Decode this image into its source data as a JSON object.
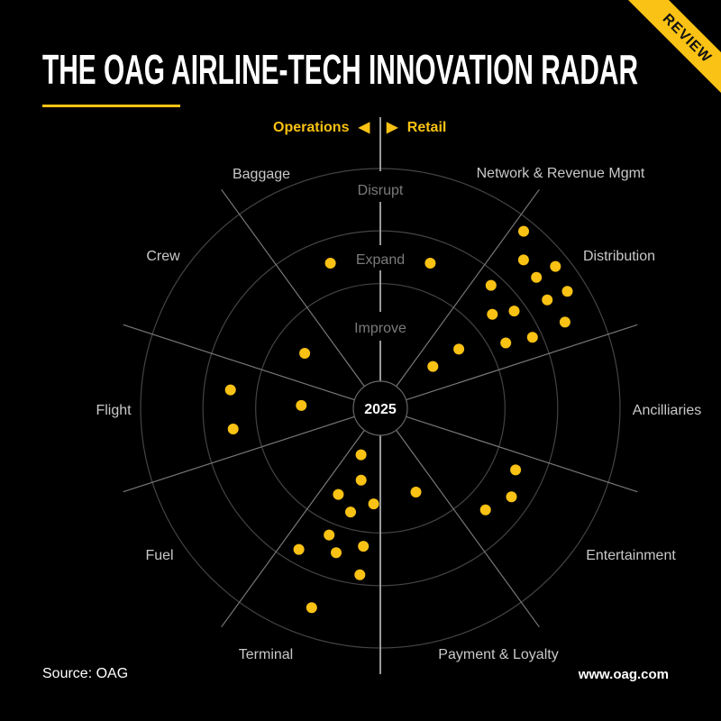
{
  "header": {
    "title": "THE OAG AIRLINE-TECH INNOVATION RADAR",
    "ribbon": "REVIEW"
  },
  "footer": {
    "source": "Source: OAG",
    "url": "www.oag.com"
  },
  "colors": {
    "accent": "#f9c214",
    "background": "#000000",
    "grid": "#555555"
  },
  "chart_data": {
    "type": "scatter",
    "subtype": "radar",
    "center_label": "2025",
    "halves": {
      "left": "Operations",
      "right": "Retail"
    },
    "rings": [
      "Improve",
      "Expand",
      "Disrupt"
    ],
    "ring_bounds_pct": [
      11,
      52,
      74,
      100
    ],
    "sectors": [
      {
        "name": "Network & Revenue Mgmt",
        "start": 0,
        "end": 36
      },
      {
        "name": "Distribution",
        "start": 36,
        "end": 72
      },
      {
        "name": "Ancilliaries",
        "start": 72,
        "end": 108
      },
      {
        "name": "Entertainment",
        "start": 108,
        "end": 144
      },
      {
        "name": "Payment & Loyalty",
        "start": 144,
        "end": 180
      },
      {
        "name": "Terminal",
        "start": 180,
        "end": 216
      },
      {
        "name": "Fuel",
        "start": 216,
        "end": 252
      },
      {
        "name": "Flight",
        "start": 252,
        "end": 288
      },
      {
        "name": "Crew",
        "start": 288,
        "end": 324
      },
      {
        "name": "Baggage",
        "start": 324,
        "end": 360
      }
    ],
    "points_note": "theta = degrees clockwise from top; r = percent of outer ring",
    "points": [
      {
        "theta": 341,
        "r": 64
      },
      {
        "theta": 19,
        "r": 64
      },
      {
        "theta": 39,
        "r": 95
      },
      {
        "theta": 44,
        "r": 86
      },
      {
        "theta": 50,
        "r": 85
      },
      {
        "theta": 51,
        "r": 94
      },
      {
        "theta": 42,
        "r": 69
      },
      {
        "theta": 57,
        "r": 83
      },
      {
        "theta": 58,
        "r": 92
      },
      {
        "theta": 50,
        "r": 61
      },
      {
        "theta": 54,
        "r": 69
      },
      {
        "theta": 65,
        "r": 85
      },
      {
        "theta": 62.5,
        "r": 59
      },
      {
        "theta": 65,
        "r": 70
      },
      {
        "theta": 53,
        "r": 41
      },
      {
        "theta": 51.5,
        "r": 28
      },
      {
        "theta": 306,
        "r": 39
      },
      {
        "theta": 277,
        "r": 63
      },
      {
        "theta": 272,
        "r": 33
      },
      {
        "theta": 262,
        "r": 62
      },
      {
        "theta": 202.5,
        "r": 21
      },
      {
        "theta": 195,
        "r": 31
      },
      {
        "theta": 206,
        "r": 40
      },
      {
        "theta": 196,
        "r": 45
      },
      {
        "theta": 184,
        "r": 40
      },
      {
        "theta": 157,
        "r": 38
      },
      {
        "theta": 202,
        "r": 57
      },
      {
        "theta": 210,
        "r": 68
      },
      {
        "theta": 197,
        "r": 63
      },
      {
        "theta": 187,
        "r": 58
      },
      {
        "theta": 187,
        "r": 70
      },
      {
        "theta": 199,
        "r": 88
      },
      {
        "theta": 114.5,
        "r": 62
      },
      {
        "theta": 124,
        "r": 66
      },
      {
        "theta": 134,
        "r": 61
      }
    ]
  }
}
